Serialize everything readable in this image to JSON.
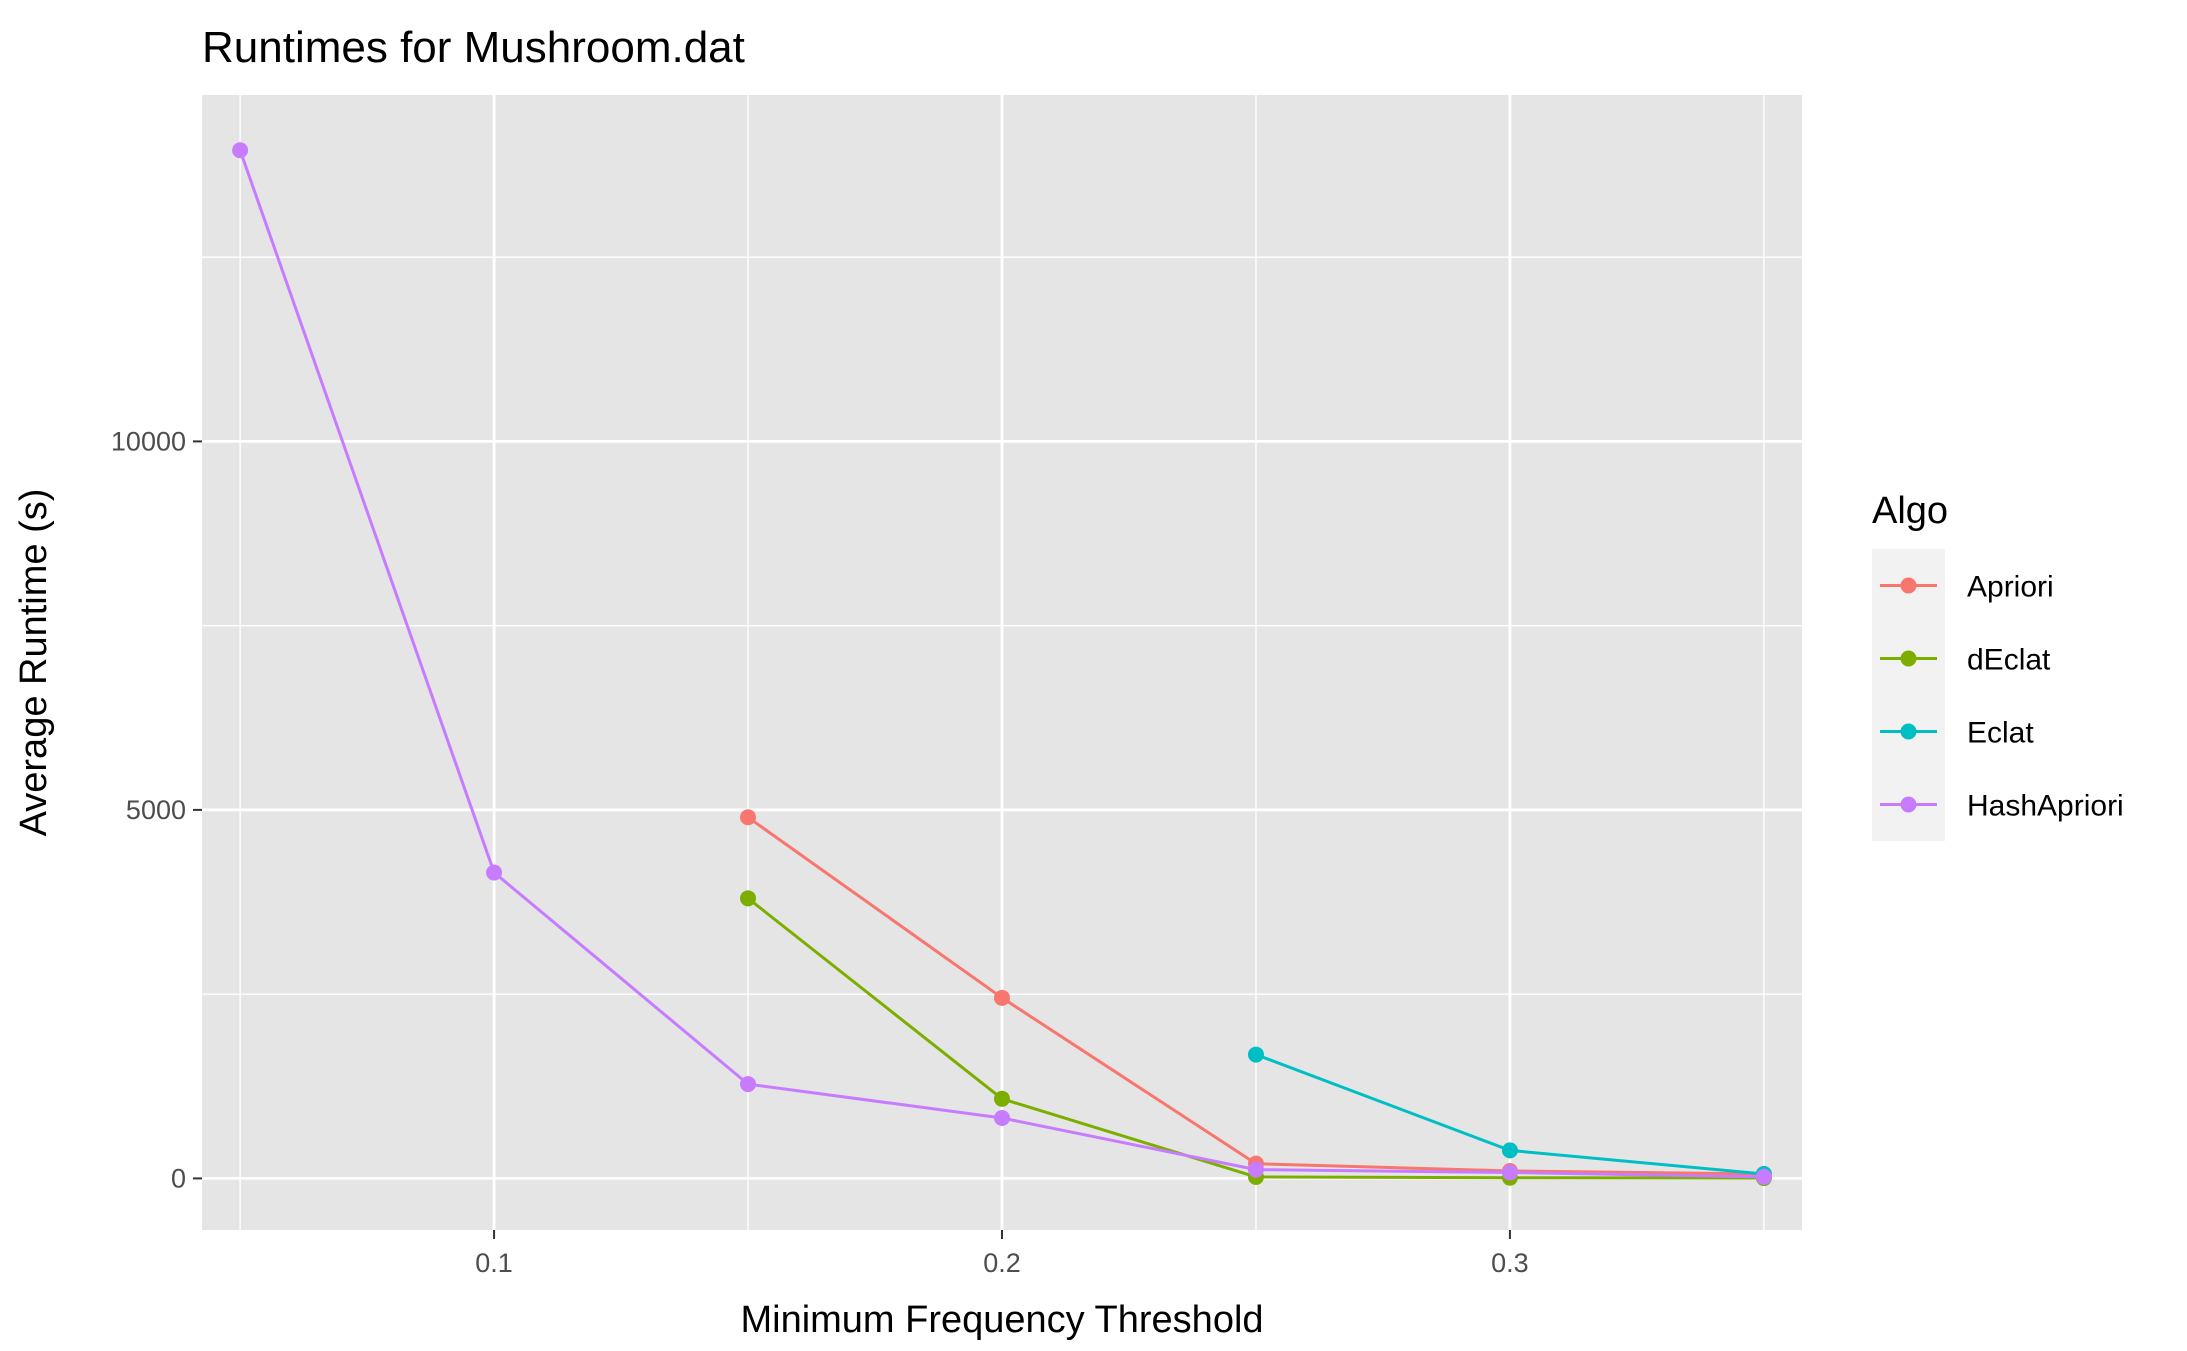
{
  "chart_data": {
    "type": "line",
    "title": "Runtimes for Mushroom.dat",
    "xlabel": "Minimum Frequency Threshold",
    "ylabel": "Average Runtime (s)",
    "xlim": [
      0.0425,
      0.3575
    ],
    "ylim": [
      -700,
      14700
    ],
    "xticks": [
      0.1,
      0.2,
      0.3
    ],
    "xtick_labels": [
      "0.1",
      "0.2",
      "0.3"
    ],
    "xminor": [
      0.05,
      0.15,
      0.25,
      0.35
    ],
    "yticks": [
      0,
      5000,
      10000
    ],
    "ytick_labels": [
      "0",
      "5000",
      "10000"
    ],
    "yminor": [
      2500,
      7500,
      12500
    ],
    "grid": true,
    "legend": {
      "title": "Algo",
      "position": "right"
    },
    "series": [
      {
        "name": "Apriori",
        "color": "#F8766D",
        "points": [
          [
            0.15,
            4900
          ],
          [
            0.2,
            2450
          ],
          [
            0.25,
            200
          ],
          [
            0.3,
            100
          ],
          [
            0.35,
            60
          ]
        ]
      },
      {
        "name": "dEclat",
        "color": "#7CAE00",
        "points": [
          [
            0.15,
            3800
          ],
          [
            0.2,
            1080
          ],
          [
            0.25,
            20
          ],
          [
            0.3,
            10
          ],
          [
            0.35,
            5
          ]
        ]
      },
      {
        "name": "Eclat",
        "color": "#00BFC4",
        "points": [
          [
            0.25,
            1680
          ],
          [
            0.3,
            380
          ],
          [
            0.35,
            60
          ]
        ]
      },
      {
        "name": "HashApriori",
        "color": "#C77CFF",
        "points": [
          [
            0.05,
            13950
          ],
          [
            0.1,
            4150
          ],
          [
            0.15,
            1280
          ],
          [
            0.2,
            820
          ],
          [
            0.25,
            120
          ],
          [
            0.3,
            80
          ],
          [
            0.35,
            20
          ]
        ]
      }
    ]
  }
}
